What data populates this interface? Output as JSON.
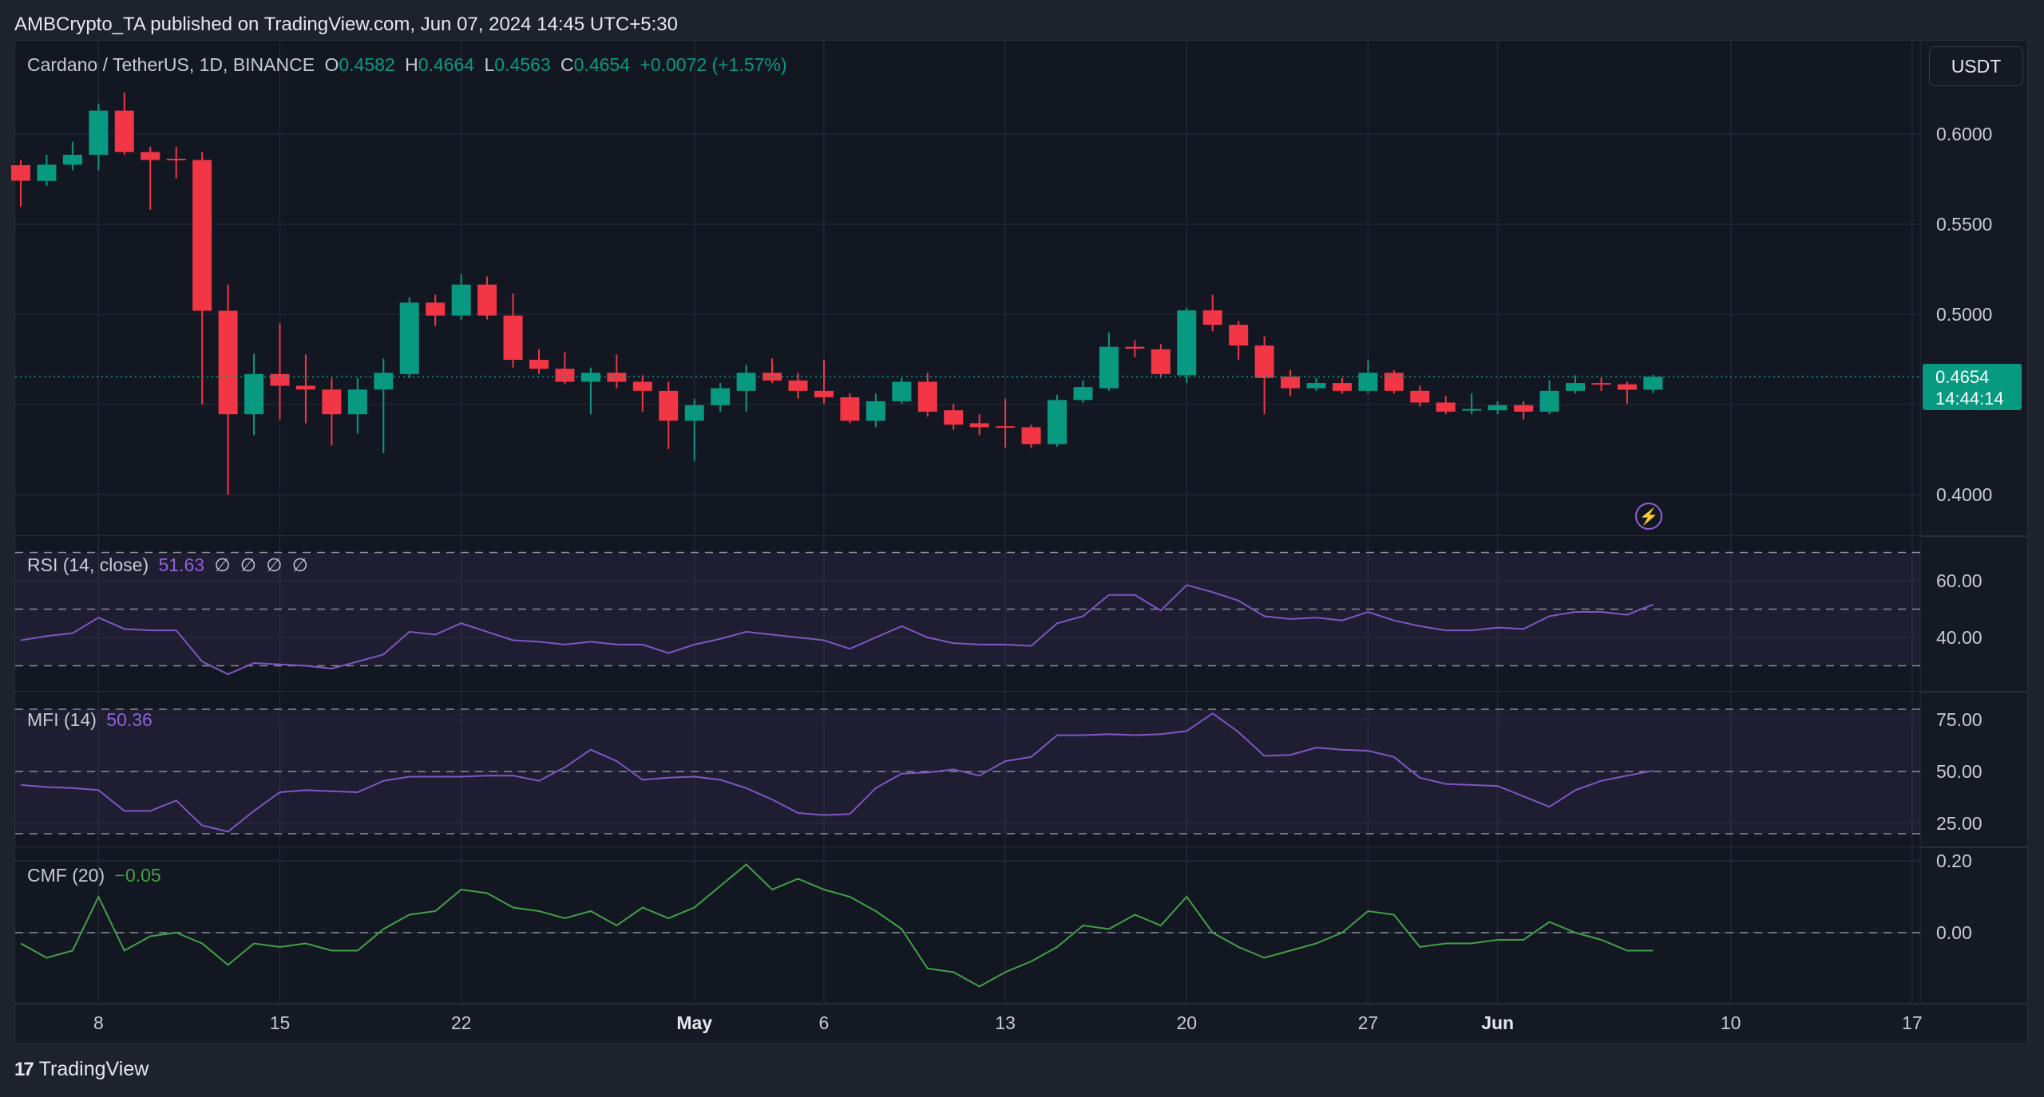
{
  "header": {
    "published": "AMBCrypto_TA published on TradingView.com, Jun 07, 2024 14:45 UTC+5:30"
  },
  "symbol": {
    "title": "Cardano / TetherUS, 1D, BINANCE",
    "o_label": "O",
    "o": "0.4582",
    "h_label": "H",
    "h": "0.4664",
    "l_label": "L",
    "l": "0.4563",
    "c_label": "C",
    "c": "0.4654",
    "change": "+0.0072 (+1.57%)"
  },
  "currency_button": "USDT",
  "last_price": {
    "value": "0.4654",
    "countdown": "14:44:14"
  },
  "footer": {
    "logo_text": "TradingView",
    "logo_mark": "17"
  },
  "colors": {
    "up": "#089981",
    "down": "#f23645",
    "rsi": "#7e57c2",
    "mfi": "#7e57c2",
    "cmf": "#43a047"
  },
  "chart_data": [
    {
      "type": "candlestick",
      "title": "Cardano / TetherUS, 1D, BINANCE",
      "x_start": "2024-04-05",
      "x_end": "2024-06-07",
      "x_ticks": [
        {
          "index": 3,
          "label": "8",
          "bold": false
        },
        {
          "index": 10,
          "label": "15",
          "bold": false
        },
        {
          "index": 17,
          "label": "22",
          "bold": false
        },
        {
          "index": 26,
          "label": "May",
          "bold": true
        },
        {
          "index": 31,
          "label": "6",
          "bold": false
        },
        {
          "index": 38,
          "label": "13",
          "bold": false
        },
        {
          "index": 45,
          "label": "20",
          "bold": false
        },
        {
          "index": 52,
          "label": "27",
          "bold": false
        },
        {
          "index": 57,
          "label": "Jun",
          "bold": true
        },
        {
          "index": 66,
          "label": "10",
          "bold": false
        },
        {
          "index": 73,
          "label": "17",
          "bold": false
        }
      ],
      "y_ticks": [
        "0.6000",
        "0.5500",
        "0.5000",
        "0.4000"
      ],
      "y_tick_values": [
        0.6,
        0.55,
        0.5,
        0.4
      ],
      "ohlc": [
        [
          0.5827,
          0.5856,
          0.5597,
          0.5741
        ],
        [
          0.574,
          0.5885,
          0.5712,
          0.583
        ],
        [
          0.583,
          0.5957,
          0.58,
          0.5885
        ],
        [
          0.5885,
          0.617,
          0.58,
          0.613
        ],
        [
          0.613,
          0.623,
          0.5885,
          0.59
        ],
        [
          0.59,
          0.593,
          0.558,
          0.5856
        ],
        [
          0.5863,
          0.593,
          0.5755,
          0.5856
        ],
        [
          0.5856,
          0.59,
          0.45,
          0.502
        ],
        [
          0.502,
          0.5165,
          0.4,
          0.4446
        ],
        [
          0.4446,
          0.478,
          0.433,
          0.4669
        ],
        [
          0.4669,
          0.495,
          0.4417,
          0.4604
        ],
        [
          0.4604,
          0.4777,
          0.4396,
          0.4583
        ],
        [
          0.4583,
          0.4647,
          0.4273,
          0.4446
        ],
        [
          0.4446,
          0.4647,
          0.4338,
          0.4583
        ],
        [
          0.4583,
          0.4755,
          0.423,
          0.4676
        ],
        [
          0.4669,
          0.5094,
          0.4647,
          0.5065
        ],
        [
          0.5065,
          0.5108,
          0.4935,
          0.4993
        ],
        [
          0.4993,
          0.5223,
          0.4971,
          0.5165
        ],
        [
          0.5165,
          0.521,
          0.4971,
          0.4993
        ],
        [
          0.4993,
          0.5115,
          0.4705,
          0.4748
        ],
        [
          0.4748,
          0.4806,
          0.4669,
          0.4698
        ],
        [
          0.4698,
          0.479,
          0.4612,
          0.4626
        ],
        [
          0.4626,
          0.4705,
          0.4446,
          0.4676
        ],
        [
          0.4676,
          0.4777,
          0.459,
          0.4626
        ],
        [
          0.4626,
          0.4662,
          0.446,
          0.4576
        ],
        [
          0.4576,
          0.4626,
          0.4252,
          0.441
        ],
        [
          0.441,
          0.4532,
          0.4187,
          0.4496
        ],
        [
          0.4496,
          0.4619,
          0.446,
          0.459
        ],
        [
          0.4576,
          0.472,
          0.446,
          0.4676
        ],
        [
          0.4676,
          0.4755,
          0.4619,
          0.4633
        ],
        [
          0.4633,
          0.4676,
          0.4532,
          0.4576
        ],
        [
          0.4576,
          0.4748,
          0.4504,
          0.454
        ],
        [
          0.454,
          0.4561,
          0.4396,
          0.441
        ],
        [
          0.441,
          0.4561,
          0.4374,
          0.4518
        ],
        [
          0.4518,
          0.4647,
          0.4504,
          0.4626
        ],
        [
          0.4626,
          0.4676,
          0.4432,
          0.446
        ],
        [
          0.4468,
          0.4504,
          0.436,
          0.4388
        ],
        [
          0.4396,
          0.4446,
          0.433,
          0.4374
        ],
        [
          0.438,
          0.4532,
          0.4259,
          0.4374
        ],
        [
          0.4374,
          0.4388,
          0.4259,
          0.428
        ],
        [
          0.428,
          0.4554,
          0.4266,
          0.4525
        ],
        [
          0.4525,
          0.4633,
          0.451,
          0.4597
        ],
        [
          0.459,
          0.49,
          0.4576,
          0.482
        ],
        [
          0.482,
          0.4856,
          0.4763,
          0.481
        ],
        [
          0.4806,
          0.4835,
          0.4647,
          0.4669
        ],
        [
          0.4662,
          0.5036,
          0.4619,
          0.5022
        ],
        [
          0.5022,
          0.5108,
          0.4906,
          0.4942
        ],
        [
          0.4942,
          0.4964,
          0.4748,
          0.4827
        ],
        [
          0.4827,
          0.4878,
          0.4446,
          0.4647
        ],
        [
          0.4655,
          0.4691,
          0.4547,
          0.459
        ],
        [
          0.459,
          0.4647,
          0.4576,
          0.4619
        ],
        [
          0.4619,
          0.4647,
          0.4561,
          0.4576
        ],
        [
          0.4576,
          0.4748,
          0.4561,
          0.4676
        ],
        [
          0.4676,
          0.469,
          0.4561,
          0.4576
        ],
        [
          0.4576,
          0.4604,
          0.4489,
          0.4511
        ],
        [
          0.4511,
          0.4547,
          0.4446,
          0.446
        ],
        [
          0.4468,
          0.4561,
          0.4446,
          0.4475
        ],
        [
          0.4468,
          0.4518,
          0.4446,
          0.4496
        ],
        [
          0.4496,
          0.4518,
          0.4417,
          0.446
        ],
        [
          0.446,
          0.4633,
          0.4446,
          0.4576
        ],
        [
          0.4576,
          0.4662,
          0.4561,
          0.4619
        ],
        [
          0.4619,
          0.4647,
          0.4576,
          0.4612
        ],
        [
          0.4612,
          0.4626,
          0.4504,
          0.4582
        ],
        [
          0.4582,
          0.4664,
          0.4563,
          0.4654
        ]
      ]
    },
    {
      "type": "line",
      "title": "RSI (14, close)",
      "value_label": "51.63",
      "extra_labels": [
        "∅",
        "∅",
        "∅",
        "∅"
      ],
      "bands": [
        70,
        50,
        30
      ],
      "y_ticks": [
        "60.00",
        "40.00"
      ],
      "y_tick_values": [
        60,
        40
      ],
      "values": [
        39,
        40.5,
        41.5,
        47,
        43,
        42.5,
        42.5,
        31.5,
        27,
        31,
        30.5,
        30,
        29,
        31.5,
        34,
        42,
        41,
        45,
        42,
        39,
        38.5,
        37.5,
        38.5,
        37.5,
        37.5,
        34.5,
        37.5,
        39.5,
        42,
        41,
        40,
        39,
        36,
        40,
        44,
        40,
        38,
        37.5,
        37.5,
        37,
        45,
        47.5,
        55,
        55,
        49.5,
        58.5,
        56,
        53,
        47.5,
        46.5,
        47,
        46,
        49,
        46,
        44,
        42.5,
        42.5,
        43.5,
        43,
        47.5,
        49,
        49,
        48,
        51.63
      ]
    },
    {
      "type": "line",
      "title": "MFI (14)",
      "value_label": "50.36",
      "bands": [
        80,
        50,
        20
      ],
      "y_ticks": [
        "75.00",
        "50.00",
        "25.00"
      ],
      "y_tick_values": [
        75,
        50,
        25
      ],
      "values": [
        43.5,
        42.5,
        42,
        41,
        31,
        31,
        36,
        24,
        21,
        31,
        40,
        41,
        40.5,
        40,
        45.5,
        47.5,
        47.5,
        47.5,
        48,
        48,
        45.5,
        52,
        60.5,
        55,
        46,
        47,
        47.5,
        46,
        42,
        36.5,
        30,
        29,
        29.5,
        42,
        49,
        49.5,
        51,
        48,
        55,
        57,
        67.5,
        67.5,
        68,
        67.5,
        68,
        69.5,
        78,
        69,
        57.5,
        58,
        61.5,
        60.5,
        60,
        57,
        47,
        44,
        43.5,
        43,
        38,
        33,
        41,
        45.5,
        48,
        50.36
      ]
    },
    {
      "type": "line",
      "title": "CMF (20)",
      "value_label": "−0.05",
      "bands": [
        0
      ],
      "y_ticks": [
        "0.20",
        "0.00"
      ],
      "y_tick_values": [
        0.2,
        0
      ],
      "values": [
        -0.03,
        -0.07,
        -0.05,
        0.1,
        -0.05,
        -0.01,
        0.0,
        -0.03,
        -0.09,
        -0.03,
        -0.04,
        -0.03,
        -0.05,
        -0.05,
        0.01,
        0.05,
        0.06,
        0.12,
        0.11,
        0.07,
        0.06,
        0.04,
        0.06,
        0.02,
        0.07,
        0.04,
        0.07,
        0.13,
        0.19,
        0.12,
        0.15,
        0.12,
        0.1,
        0.06,
        0.01,
        -0.1,
        -0.11,
        -0.15,
        -0.11,
        -0.08,
        -0.04,
        0.02,
        0.01,
        0.05,
        0.02,
        0.1,
        0.0,
        -0.04,
        -0.07,
        -0.05,
        -0.03,
        0.0,
        0.06,
        0.05,
        -0.04,
        -0.03,
        -0.03,
        -0.02,
        -0.02,
        0.03,
        0.0,
        -0.02,
        -0.05,
        -0.05
      ]
    }
  ]
}
